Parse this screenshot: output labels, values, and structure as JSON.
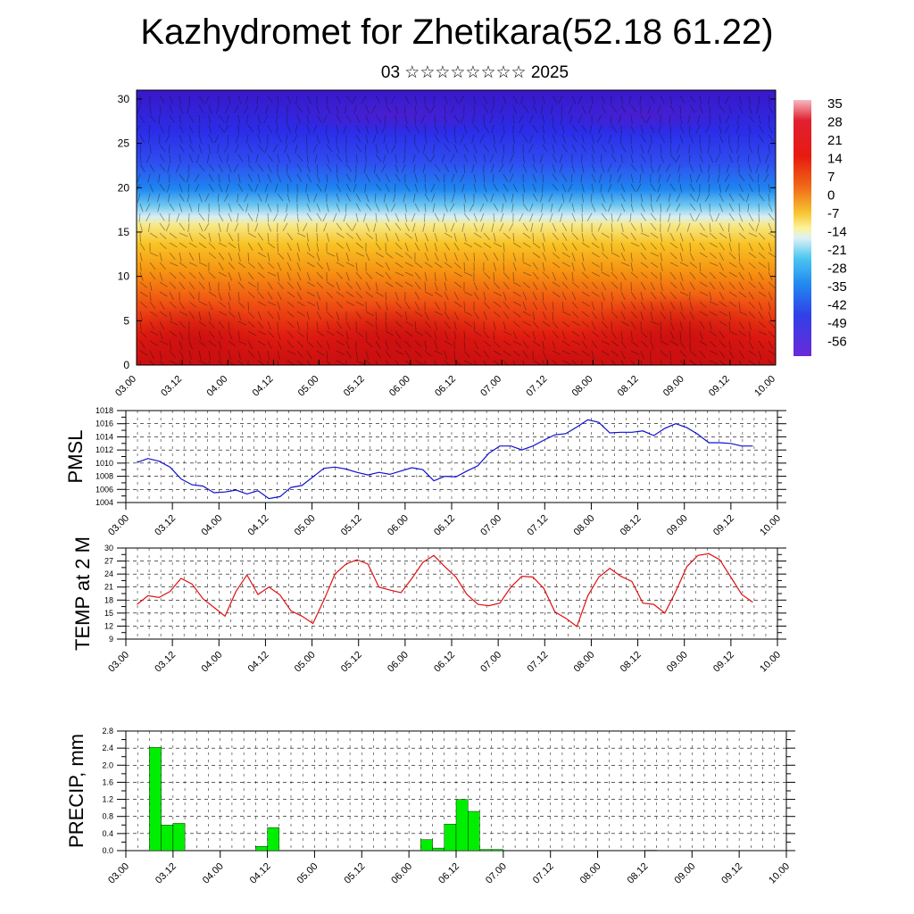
{
  "title": "Kazhydromet for Zhetikara(52.18 61.22)",
  "subtitle": "03 ☆☆☆☆☆☆☆☆ 2025",
  "colors": {
    "pmsl_line": "#1010d0",
    "temp_line": "#e01010",
    "precip_bar": "#00ee00",
    "grid": "#000000"
  },
  "chart_data": [
    {
      "type": "heatmap",
      "name": "cross-section",
      "x_ticks": [
        "03.00",
        "03.12",
        "04.00",
        "04.12",
        "05.00",
        "05.12",
        "06.00",
        "06.12",
        "07.00",
        "07.12",
        "08.00",
        "08.12",
        "09.00",
        "09.12",
        "10.00"
      ],
      "y_ticks": [
        "0",
        "5",
        "10",
        "15",
        "20",
        "25",
        "30"
      ],
      "ylim": [
        0,
        31
      ],
      "colorbar_labels": [
        "35",
        "28",
        "21",
        "14",
        "7",
        "0",
        "-7",
        "-14",
        "-21",
        "-28",
        "-35",
        "-42",
        "-49",
        "-56"
      ],
      "colorbar_range": [
        -60,
        38
      ]
    },
    {
      "type": "line",
      "ylabel": "PMSL",
      "ylim": [
        1004,
        1018
      ],
      "y_ticks": [
        "1004",
        "1006",
        "1008",
        "1010",
        "1012",
        "1014",
        "1016",
        "1018"
      ],
      "x_ticks": [
        "03.00",
        "03.12",
        "04.00",
        "04.12",
        "05.00",
        "05.12",
        "06.00",
        "06.12",
        "07.00",
        "07.12",
        "08.00",
        "08.12",
        "09.00",
        "09.12",
        "10.00"
      ],
      "values": [
        1010.1,
        1010.7,
        1010.3,
        1009.4,
        1007.6,
        1006.7,
        1006.5,
        1005.5,
        1005.6,
        1005.9,
        1005.3,
        1005.8,
        1004.6,
        1004.9,
        1006.3,
        1006.6,
        1007.9,
        1009.2,
        1009.4,
        1009.1,
        1008.6,
        1008.2,
        1008.6,
        1008.3,
        1008.8,
        1009.3,
        1009.0,
        1007.3,
        1008.0,
        1007.9,
        1008.8,
        1009.6,
        1011.5,
        1012.6,
        1012.6,
        1012.0,
        1012.6,
        1013.5,
        1014.3,
        1014.5,
        1015.5,
        1016.6,
        1016.2,
        1014.6,
        1014.7,
        1014.7,
        1014.9,
        1014.2,
        1015.3,
        1016.0,
        1015.4,
        1014.4,
        1013.1,
        1013.1,
        1013.0,
        1012.6,
        1012.6
      ],
      "x_start": 0,
      "x_step": 0.25
    },
    {
      "type": "line",
      "ylabel": "TEMP at 2 M",
      "ylim": [
        9,
        30
      ],
      "y_ticks": [
        "9",
        "12",
        "15",
        "18",
        "21",
        "24",
        "27",
        "30"
      ],
      "x_ticks": [
        "03.00",
        "03.12",
        "04.00",
        "04.12",
        "05.00",
        "05.12",
        "06.00",
        "06.12",
        "07.00",
        "07.12",
        "08.00",
        "08.12",
        "09.00",
        "09.12",
        "10.00"
      ],
      "values": [
        17.0,
        19.0,
        18.6,
        20.0,
        23.0,
        21.7,
        18.3,
        16.3,
        14.3,
        20.0,
        23.8,
        19.3,
        21.0,
        19.2,
        15.5,
        14.3,
        12.6,
        18.0,
        24.0,
        26.3,
        27.3,
        26.3,
        21.0,
        20.3,
        19.7,
        23.0,
        26.7,
        28.3,
        25.7,
        23.3,
        19.3,
        17.0,
        16.7,
        17.3,
        21.0,
        23.5,
        23.3,
        20.7,
        15.3,
        13.8,
        11.9,
        19.0,
        23.3,
        25.3,
        23.5,
        22.3,
        17.3,
        17.0,
        15.0,
        20.0,
        25.7,
        28.3,
        28.7,
        27.3,
        23.3,
        19.3,
        17.5
      ],
      "x_start": 0,
      "x_step": 0.25
    },
    {
      "type": "bar",
      "ylabel": "PRECIP, mm",
      "ylim": [
        0,
        2.8
      ],
      "y_ticks": [
        "0.0",
        "0.4",
        "0.8",
        "1.2",
        "1.6",
        "2.0",
        "2.4",
        "2.8"
      ],
      "x_ticks": [
        "03.00",
        "03.12",
        "04.00",
        "04.12",
        "05.00",
        "05.12",
        "06.00",
        "06.12",
        "07.00",
        "07.12",
        "08.00",
        "08.12",
        "09.00",
        "09.12",
        "10.00"
      ],
      "bars": [
        {
          "x": 0.25,
          "value": 2.42
        },
        {
          "x": 0.5,
          "value": 0.6
        },
        {
          "x": 0.75,
          "value": 0.64
        },
        {
          "x": 2.5,
          "value": 0.1
        },
        {
          "x": 2.75,
          "value": 0.54
        },
        {
          "x": 6.0,
          "value": 0.26
        },
        {
          "x": 6.25,
          "value": 0.06
        },
        {
          "x": 6.5,
          "value": 0.62
        },
        {
          "x": 6.75,
          "value": 1.2
        },
        {
          "x": 7.0,
          "value": 0.92
        },
        {
          "x": 7.25,
          "value": 0.03
        },
        {
          "x": 7.5,
          "value": 0.03
        },
        {
          "x": 10.75,
          "value": 0.01
        }
      ]
    }
  ]
}
